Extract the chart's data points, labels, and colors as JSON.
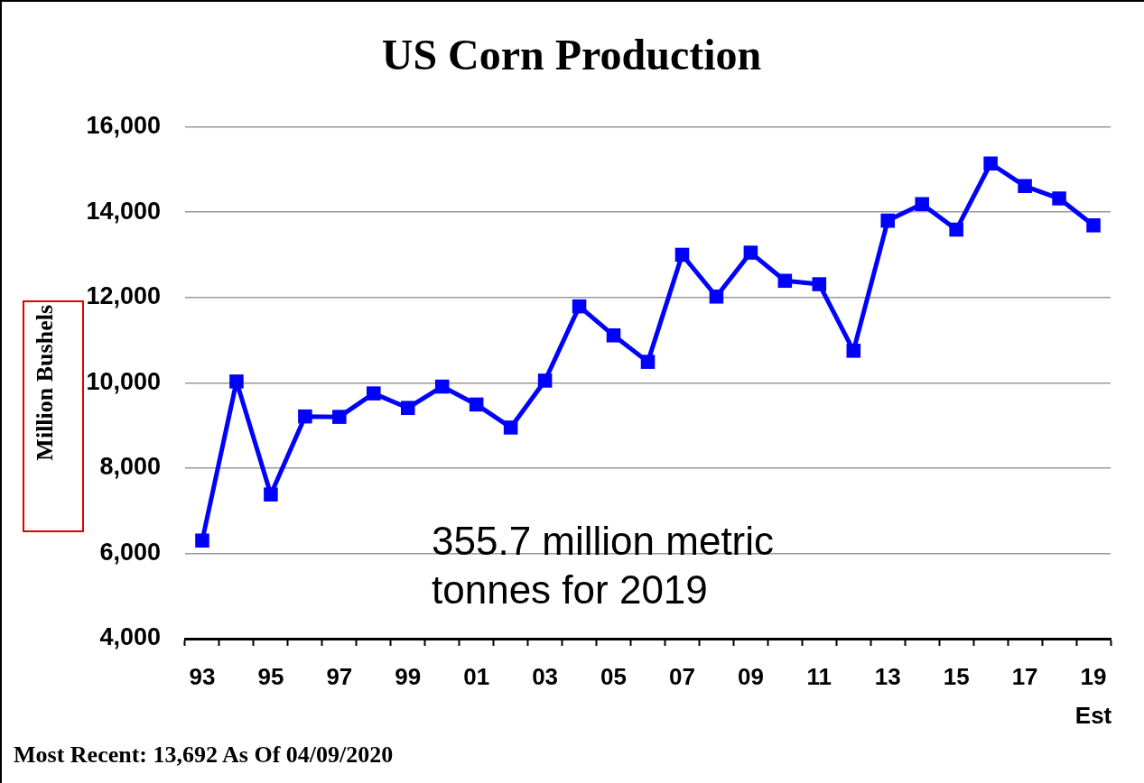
{
  "chart_data": {
    "type": "line",
    "title": "US Corn Production",
    "ylabel": "Million Bushels",
    "categories": [
      "93",
      null,
      "95",
      null,
      "97",
      null,
      "99",
      null,
      "01",
      null,
      "03",
      null,
      "05",
      null,
      "07",
      null,
      "09",
      null,
      "11",
      null,
      "13",
      null,
      "15",
      null,
      "17",
      null,
      "19\nEst"
    ],
    "values": [
      6300,
      10030,
      7380,
      9210,
      9200,
      9750,
      9410,
      9910,
      9490,
      8950,
      10050,
      11790,
      11110,
      10490,
      13000,
      12020,
      13050,
      12390,
      12310,
      10750,
      13800,
      14190,
      13590,
      15140,
      14610,
      14320,
      13690
    ],
    "color": "#0000ff",
    "ylim": [
      4000,
      16000
    ],
    "yticks": [
      {
        "value": 4000,
        "label": "4,000"
      },
      {
        "value": 6000,
        "label": "6,000"
      },
      {
        "value": 8000,
        "label": "8,000"
      },
      {
        "value": 10000,
        "label": "10,000"
      },
      {
        "value": 12000,
        "label": "12,000"
      },
      {
        "value": 14000,
        "label": "14,000"
      },
      {
        "value": 16000,
        "label": "16,000"
      }
    ],
    "grid": "y",
    "marker": "square",
    "line_style": "solid",
    "annotations": [
      "355.7 million metric tonnes for 2019",
      "Most Recent: 13,692 As Of 04/09/2020"
    ]
  }
}
